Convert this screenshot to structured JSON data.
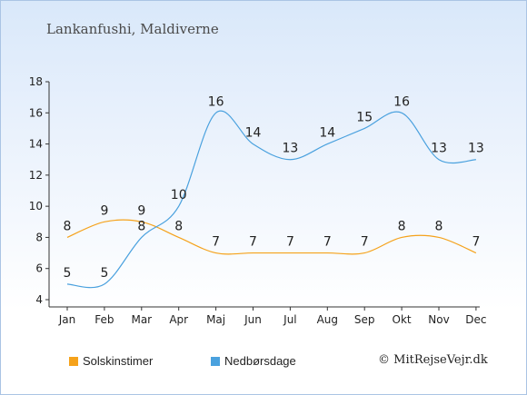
{
  "title": "Lankanfushi, Maldiverne",
  "credit": "© MitRejseVejr.dk",
  "colors": {
    "sun": "#f5a21b",
    "rain": "#4aa1de",
    "axis": "#333333"
  },
  "chart_data": {
    "type": "line",
    "categories": [
      "Jan",
      "Feb",
      "Mar",
      "Apr",
      "Maj",
      "Jun",
      "Jul",
      "Aug",
      "Sep",
      "Okt",
      "Nov",
      "Dec"
    ],
    "ylim": [
      4,
      18
    ],
    "yticks": [
      4,
      6,
      8,
      10,
      12,
      14,
      16,
      18
    ],
    "grid": false,
    "legend": "bottom",
    "series": [
      {
        "name": "Solskinstimer",
        "color": "#f5a21b",
        "values": [
          8,
          9,
          9,
          8,
          7,
          7,
          7,
          7,
          7,
          8,
          8,
          7
        ]
      },
      {
        "name": "Nedbørsdage",
        "color": "#4aa1de",
        "values": [
          5,
          5,
          8,
          10,
          16,
          14,
          13,
          14,
          15,
          16,
          13,
          13
        ]
      }
    ]
  }
}
